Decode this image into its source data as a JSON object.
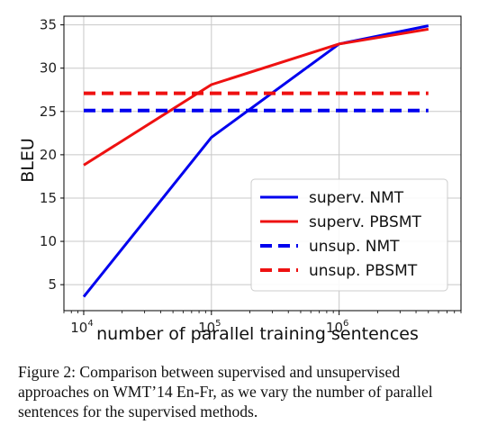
{
  "chart_data": {
    "type": "line",
    "xlabel": "number of parallel training sentences",
    "ylabel": "BLEU",
    "x_scale": "log",
    "xlim": [
      7000,
      9000000
    ],
    "ylim": [
      2,
      36
    ],
    "x_ticks": [
      {
        "value": 10000,
        "base": "10",
        "exp": "4"
      },
      {
        "value": 100000,
        "base": "10",
        "exp": "5"
      },
      {
        "value": 1000000,
        "base": "10",
        "exp": "6"
      }
    ],
    "y_ticks": [
      5,
      10,
      15,
      20,
      25,
      30,
      35
    ],
    "grid": true,
    "legend_position": "lower-right",
    "series": [
      {
        "name": "superv. NMT",
        "color": "#0000ee",
        "dash": false,
        "x": [
          10000,
          100000,
          1000000,
          5000000
        ],
        "y": [
          3.6,
          22.0,
          32.8,
          34.9
        ]
      },
      {
        "name": "superv. PBSMT",
        "color": "#ee1111",
        "dash": false,
        "x": [
          10000,
          100000,
          1000000,
          5000000
        ],
        "y": [
          18.8,
          28.1,
          32.8,
          34.5
        ]
      },
      {
        "name": "unsup. NMT",
        "color": "#0000ee",
        "dash": true,
        "x": [
          10000,
          5000000
        ],
        "y": [
          25.1,
          25.1
        ]
      },
      {
        "name": "unsup. PBSMT",
        "color": "#ee1111",
        "dash": true,
        "x": [
          10000,
          5000000
        ],
        "y": [
          27.1,
          27.1
        ]
      }
    ]
  },
  "caption": "Figure 2: Comparison between supervised and unsupervised approaches on WMT’14 En-Fr, as we vary the number of parallel sentences for the supervised methods."
}
